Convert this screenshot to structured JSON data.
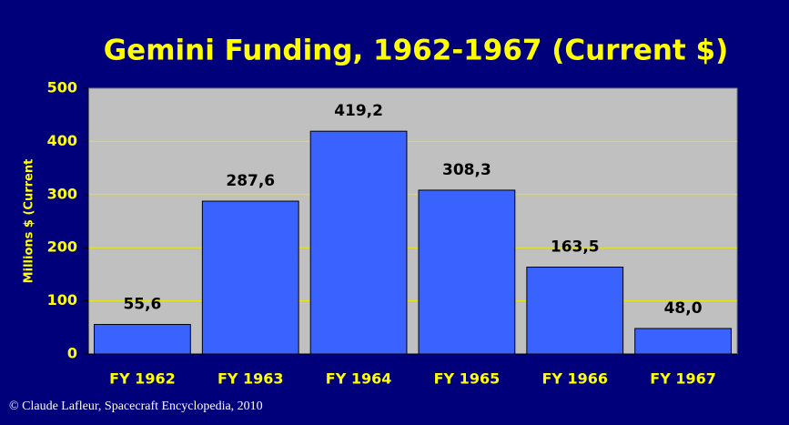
{
  "chart_data": {
    "type": "bar",
    "title": "Gemini Funding, 1962-1967 (Current $)",
    "y_label": "Millions $ (Current",
    "categories": [
      "FY 1962",
      "FY 1963",
      "FY 1964",
      "FY 1965",
      "FY 1966",
      "FY 1967"
    ],
    "values": [
      55.6,
      287.6,
      419.2,
      308.3,
      163.5,
      48.0
    ],
    "value_labels": [
      "55,6",
      "287,6",
      "419,2",
      "308,3",
      "163,5",
      "48,0"
    ],
    "color": "#3a62ff",
    "ylim": [
      0,
      500
    ],
    "yticks": [
      0,
      100,
      200,
      300,
      400,
      500
    ],
    "grid": true,
    "credit": "© Claude Lafleur, Spacecraft Encyclopedia, 2010"
  }
}
